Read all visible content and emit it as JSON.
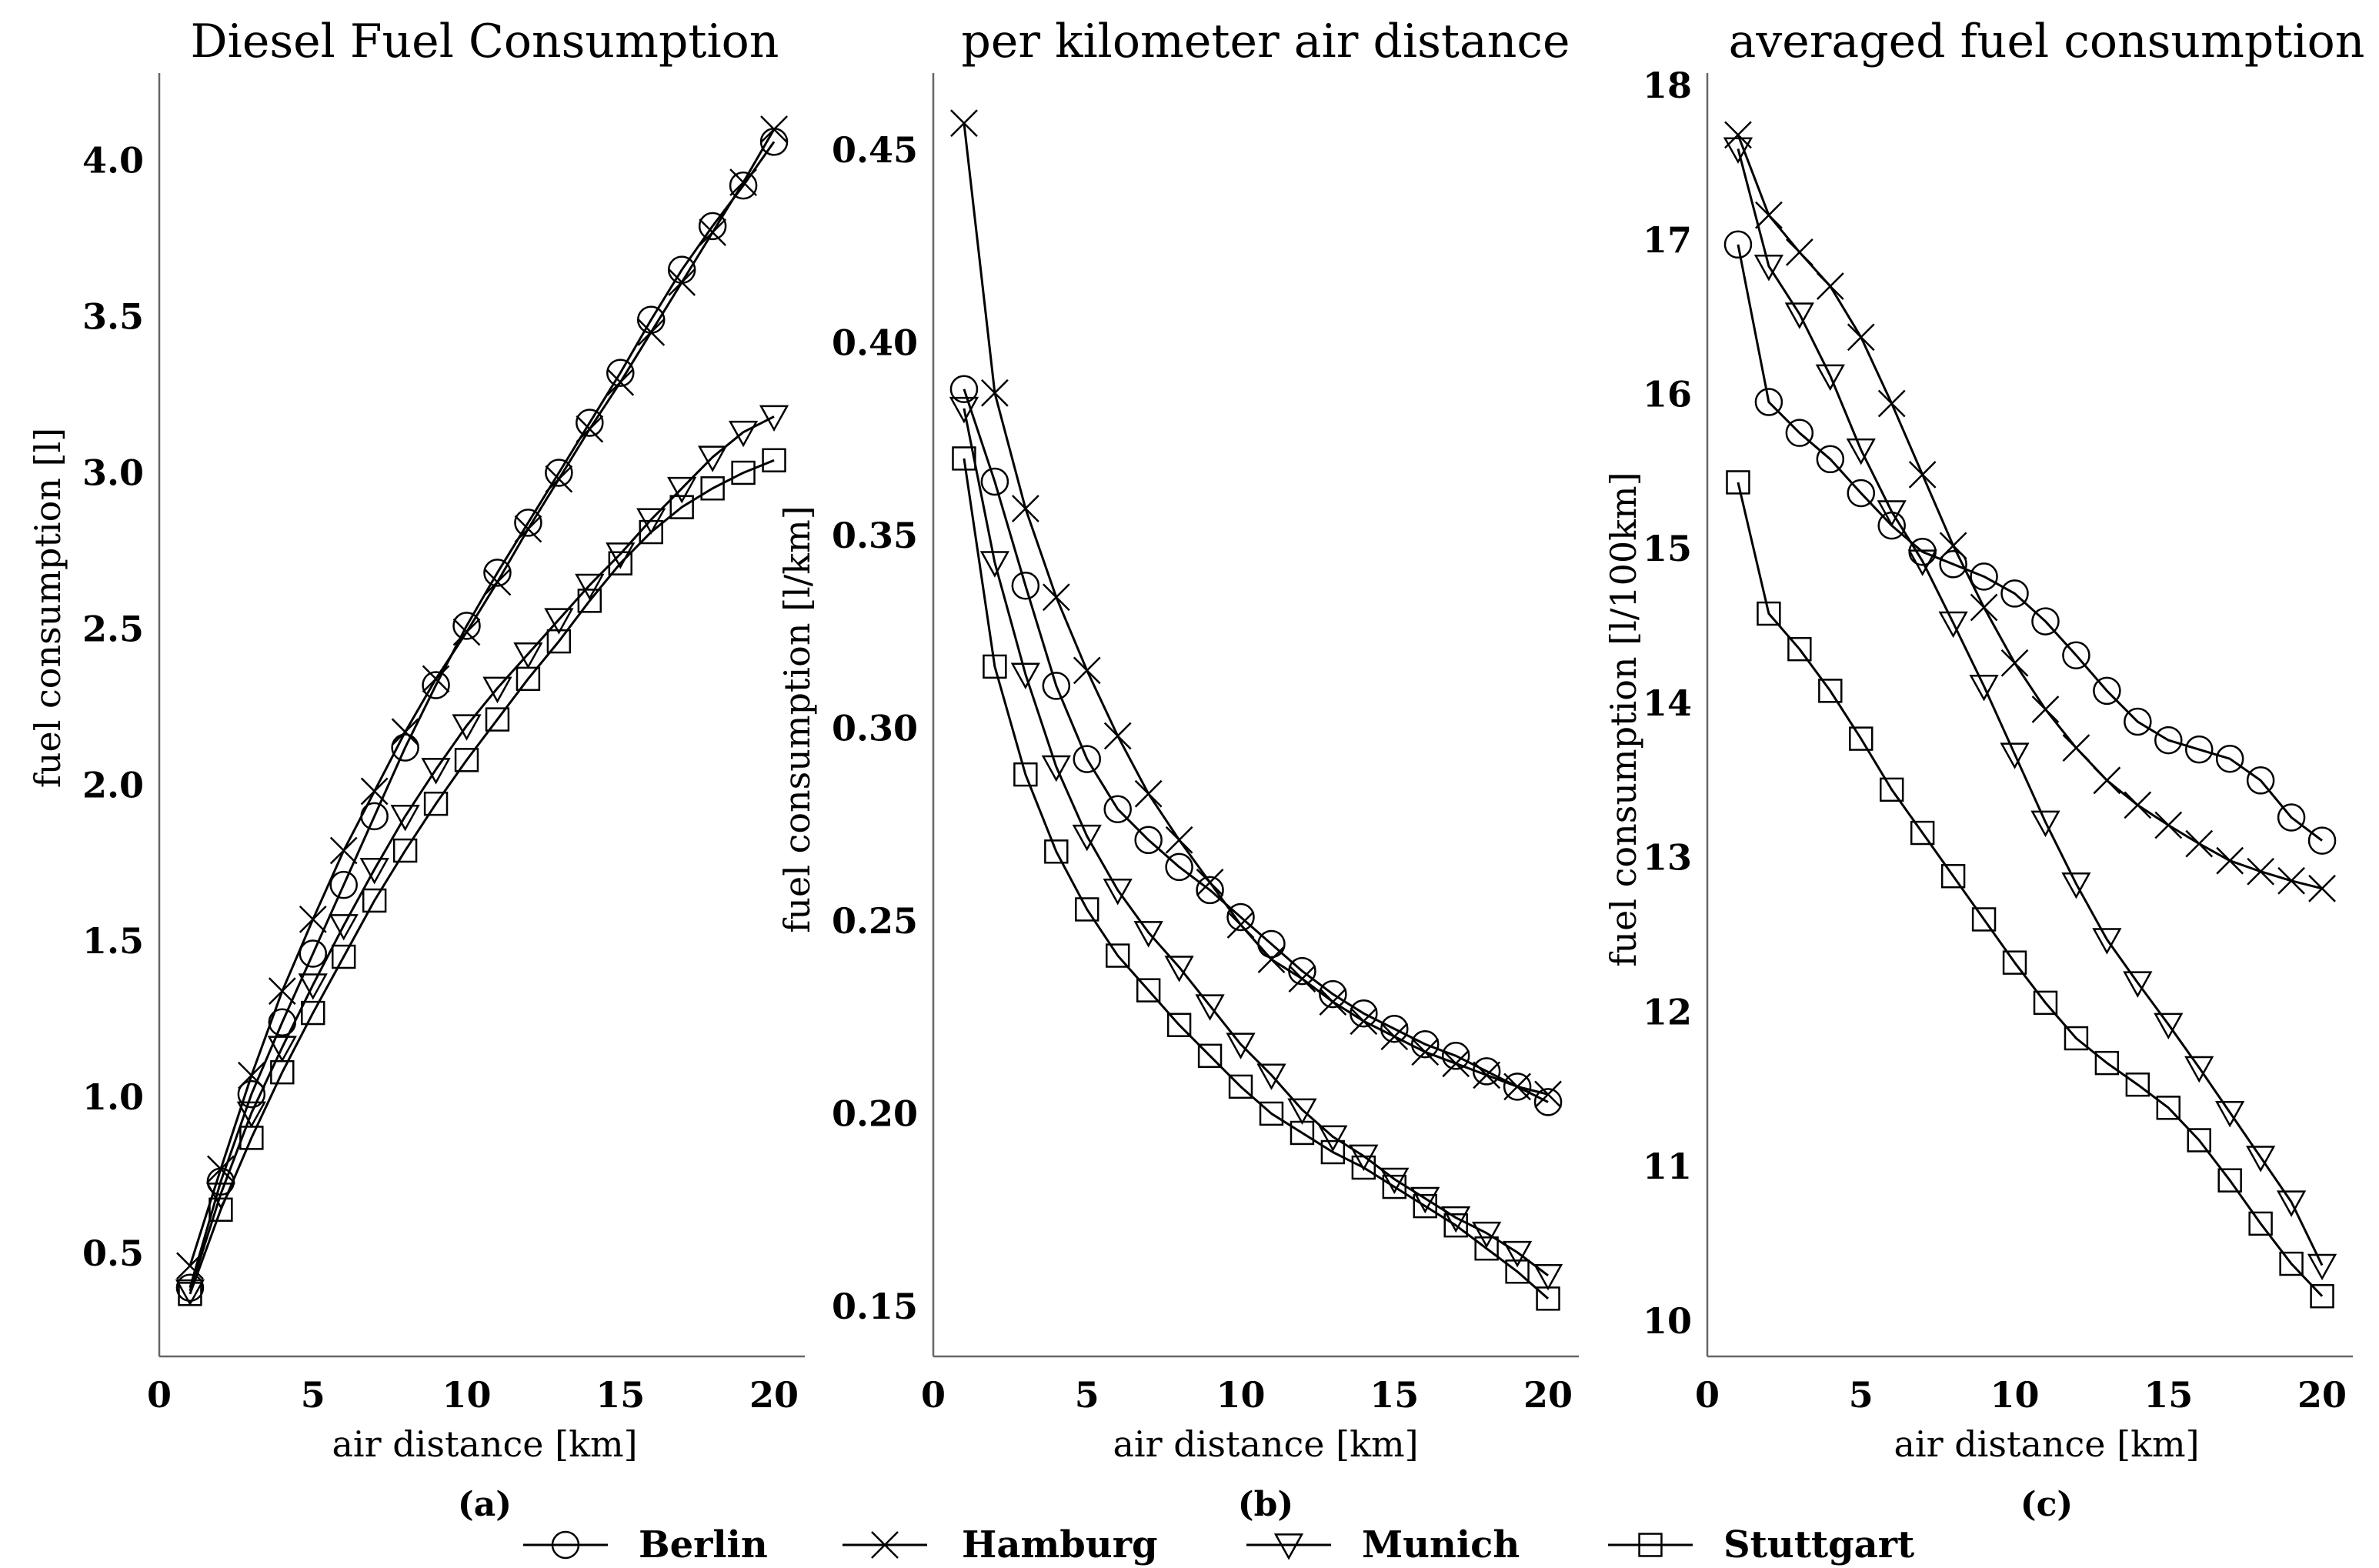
{
  "chart_data": [
    {
      "type": "line",
      "title": "Diesel Fuel Consumption",
      "xlabel": "air distance [km]",
      "ylabel": "fuel consumption [l]",
      "caption": "(a)",
      "xlim": [
        0,
        21
      ],
      "ylim": [
        0.17,
        4.28
      ],
      "xticks": [
        0,
        5,
        10,
        15,
        20
      ],
      "xtick_labels": [
        "0",
        "5",
        "10",
        "15",
        "20"
      ],
      "yticks": [
        0.5,
        1.0,
        1.5,
        2.0,
        2.5,
        3.0,
        3.5,
        4.0
      ],
      "ytick_labels": [
        "0.5",
        "1.0",
        "1.5",
        "2.0",
        "2.5",
        "3.0",
        "3.5",
        "4.0"
      ],
      "x": [
        1,
        2,
        3,
        4,
        5,
        6,
        7,
        8,
        9,
        10,
        11,
        12,
        13,
        14,
        15,
        16,
        17,
        18,
        19,
        20
      ],
      "series": [
        {
          "name": "Berlin",
          "marker": "circle",
          "values": [
            0.39,
            0.73,
            1.01,
            1.24,
            1.46,
            1.68,
            1.9,
            2.12,
            2.32,
            2.51,
            2.68,
            2.84,
            3.0,
            3.16,
            3.32,
            3.49,
            3.65,
            3.79,
            3.92,
            4.06
          ]
        },
        {
          "name": "Hamburg",
          "marker": "x",
          "values": [
            0.46,
            0.77,
            1.07,
            1.34,
            1.57,
            1.79,
            1.98,
            2.17,
            2.34,
            2.49,
            2.65,
            2.82,
            2.98,
            3.14,
            3.29,
            3.45,
            3.61,
            3.77,
            3.93,
            4.1
          ]
        },
        {
          "name": "Munich",
          "marker": "triangle-down",
          "values": [
            0.38,
            0.69,
            0.95,
            1.16,
            1.36,
            1.55,
            1.73,
            1.9,
            2.05,
            2.19,
            2.31,
            2.42,
            2.53,
            2.64,
            2.74,
            2.85,
            2.95,
            3.05,
            3.13,
            3.18
          ]
        },
        {
          "name": "Stuttgart",
          "marker": "square",
          "values": [
            0.37,
            0.64,
            0.87,
            1.08,
            1.27,
            1.45,
            1.63,
            1.79,
            1.94,
            2.08,
            2.21,
            2.34,
            2.46,
            2.59,
            2.71,
            2.81,
            2.89,
            2.95,
            3.0,
            3.04
          ]
        }
      ]
    },
    {
      "type": "line",
      "title": "per kilometer air distance",
      "xlabel": "air distance [km]",
      "ylabel": "fuel consumption [l/km]",
      "caption": "(b)",
      "xlim": [
        0,
        21
      ],
      "ylim": [
        0.137,
        0.47
      ],
      "xticks": [
        0,
        5,
        10,
        15,
        20
      ],
      "xtick_labels": [
        "0",
        "5",
        "10",
        "15",
        "20"
      ],
      "yticks": [
        0.15,
        0.2,
        0.25,
        0.3,
        0.35,
        0.4,
        0.45
      ],
      "ytick_labels": [
        "0.15",
        "0.20",
        "0.25",
        "0.30",
        "0.35",
        "0.40",
        "0.45"
      ],
      "x": [
        1,
        2,
        3,
        4,
        5,
        6,
        7,
        8,
        9,
        10,
        11,
        12,
        13,
        14,
        15,
        16,
        17,
        18,
        19,
        20
      ],
      "series": [
        {
          "name": "Berlin",
          "marker": "circle",
          "values": [
            0.388,
            0.364,
            0.337,
            0.311,
            0.292,
            0.279,
            0.271,
            0.264,
            0.258,
            0.251,
            0.244,
            0.237,
            0.231,
            0.226,
            0.222,
            0.218,
            0.215,
            0.211,
            0.207,
            0.203
          ]
        },
        {
          "name": "Hamburg",
          "marker": "x",
          "values": [
            0.457,
            0.387,
            0.357,
            0.334,
            0.315,
            0.298,
            0.283,
            0.271,
            0.26,
            0.249,
            0.24,
            0.235,
            0.229,
            0.224,
            0.22,
            0.216,
            0.213,
            0.21,
            0.207,
            0.205
          ]
        },
        {
          "name": "Munich",
          "marker": "triangle-down",
          "values": [
            0.383,
            0.343,
            0.314,
            0.29,
            0.272,
            0.258,
            0.247,
            0.238,
            0.228,
            0.218,
            0.21,
            0.201,
            0.194,
            0.189,
            0.183,
            0.178,
            0.173,
            0.169,
            0.164,
            0.158
          ]
        },
        {
          "name": "Stuttgart",
          "marker": "square",
          "values": [
            0.37,
            0.316,
            0.288,
            0.268,
            0.253,
            0.241,
            0.232,
            0.223,
            0.215,
            0.207,
            0.2,
            0.195,
            0.19,
            0.186,
            0.181,
            0.176,
            0.171,
            0.165,
            0.159,
            0.152
          ]
        }
      ]
    },
    {
      "type": "line",
      "title": "averaged fuel consumption",
      "xlabel": "air distance [km]",
      "ylabel": "fuel consumption [l/100km]",
      "caption": "(c)",
      "xlim": [
        0,
        21
      ],
      "ylim": [
        9.77,
        18.08
      ],
      "xticks": [
        0,
        5,
        10,
        15,
        20
      ],
      "xtick_labels": [
        "0",
        "5",
        "10",
        "15",
        "20"
      ],
      "yticks": [
        10,
        11,
        12,
        13,
        14,
        15,
        16,
        17,
        18
      ],
      "ytick_labels": [
        "10",
        "11",
        "12",
        "13",
        "14",
        "15",
        "16",
        "17",
        "18"
      ],
      "x": [
        1,
        2,
        3,
        4,
        5,
        6,
        7,
        8,
        9,
        10,
        11,
        12,
        13,
        14,
        15,
        16,
        17,
        18,
        19,
        20
      ],
      "series": [
        {
          "name": "Berlin",
          "marker": "circle",
          "values": [
            16.97,
            15.95,
            15.75,
            15.58,
            15.36,
            15.15,
            14.98,
            14.9,
            14.82,
            14.71,
            14.53,
            14.31,
            14.08,
            13.88,
            13.76,
            13.7,
            13.64,
            13.5,
            13.26,
            13.11
          ]
        },
        {
          "name": "Hamburg",
          "marker": "x",
          "values": [
            17.68,
            17.16,
            16.92,
            16.7,
            16.37,
            15.94,
            15.48,
            15.02,
            14.62,
            14.26,
            13.96,
            13.71,
            13.5,
            13.34,
            13.21,
            13.09,
            12.98,
            12.91,
            12.85,
            12.8
          ]
        },
        {
          "name": "Munich",
          "marker": "triangle-down",
          "values": [
            17.59,
            16.83,
            16.52,
            16.12,
            15.64,
            15.24,
            14.92,
            14.52,
            14.11,
            13.67,
            13.23,
            12.83,
            12.47,
            12.19,
            11.92,
            11.64,
            11.35,
            11.06,
            10.77,
            10.36
          ]
        },
        {
          "name": "Stuttgart",
          "marker": "square",
          "values": [
            15.43,
            14.58,
            14.35,
            14.08,
            13.77,
            13.44,
            13.16,
            12.88,
            12.6,
            12.32,
            12.06,
            11.83,
            11.67,
            11.53,
            11.38,
            11.17,
            10.91,
            10.63,
            10.37,
            10.16
          ]
        }
      ]
    }
  ],
  "legend": {
    "placement": "bottom-center",
    "entries": [
      {
        "label": "Berlin",
        "marker": "circle"
      },
      {
        "label": "Hamburg",
        "marker": "x"
      },
      {
        "label": "Munich",
        "marker": "triangle-down"
      },
      {
        "label": "Stuttgart",
        "marker": "square"
      }
    ]
  },
  "colors": {
    "line": "#000000",
    "axis": "#666666",
    "background": "#ffffff"
  }
}
